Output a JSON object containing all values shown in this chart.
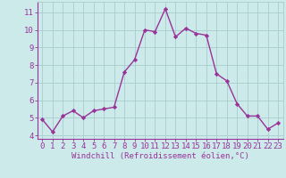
{
  "x": [
    0,
    1,
    2,
    3,
    4,
    5,
    6,
    7,
    8,
    9,
    10,
    11,
    12,
    13,
    14,
    15,
    16,
    17,
    18,
    19,
    20,
    21,
    22,
    23
  ],
  "y": [
    4.9,
    4.2,
    5.1,
    5.4,
    5.0,
    5.4,
    5.5,
    5.6,
    7.6,
    8.3,
    10.0,
    9.9,
    11.2,
    9.6,
    10.1,
    9.8,
    9.7,
    7.5,
    7.1,
    5.8,
    5.1,
    5.1,
    4.35,
    4.7
  ],
  "line_color": "#993399",
  "marker": "D",
  "marker_size": 2.2,
  "linewidth": 1.0,
  "xlabel": "Windchill (Refroidissement éolien,°C)",
  "xlabel_fontsize": 6.5,
  "ylabel_ticks": [
    4,
    5,
    6,
    7,
    8,
    9,
    10,
    11
  ],
  "ylim": [
    3.8,
    11.6
  ],
  "xlim": [
    -0.5,
    23.5
  ],
  "bg_color": "#cceaea",
  "grid_color": "#aacccc",
  "tick_fontsize": 6.5,
  "title": ""
}
